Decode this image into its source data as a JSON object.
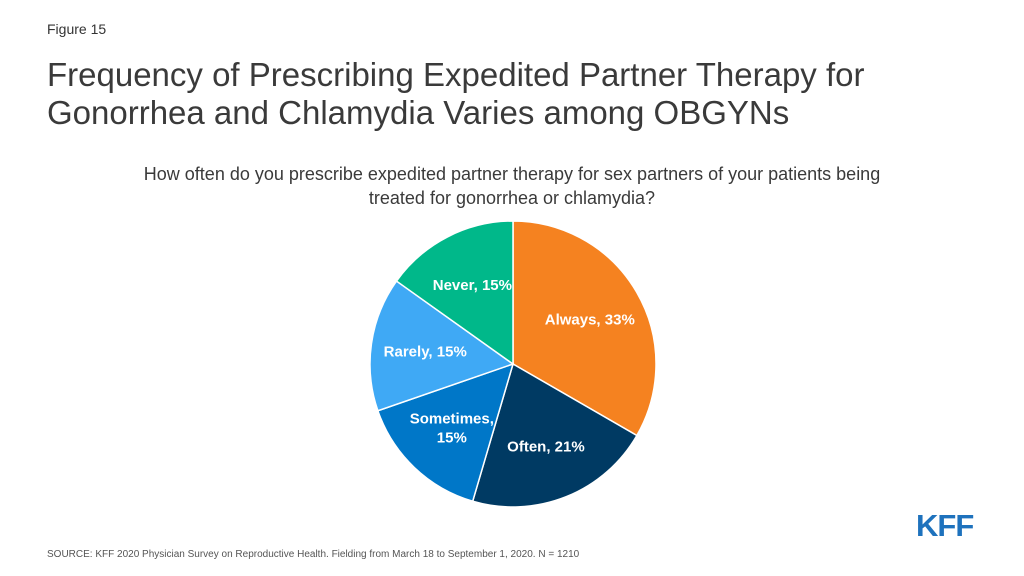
{
  "figure_label": "Figure 15",
  "title": "Frequency of Prescribing Expedited Partner Therapy for Gonorrhea and Chlamydia Varies among OBGYNs",
  "source": "SOURCE: KFF 2020 Physician Survey on Reproductive Health. Fielding from March 18 to September 1, 2020. N = 1210",
  "logo": "KFF",
  "chart_data": {
    "type": "pie",
    "title": "How often do you prescribe expedited partner therapy for sex partners of your patients being treated for gonorrhea or chlamydia?",
    "slices": [
      {
        "label": "Always",
        "value": 33,
        "display": [
          "Always, 33%"
        ],
        "color": "#f58220"
      },
      {
        "label": "Often",
        "value": 21,
        "display": [
          "Often, 21%"
        ],
        "color": "#003a63"
      },
      {
        "label": "Sometimes",
        "value": 15,
        "display": [
          "Sometimes,",
          "15%"
        ],
        "color": "#0077c8"
      },
      {
        "label": "Rarely",
        "value": 15,
        "display": [
          "Rarely, 15%"
        ],
        "color": "#3fa9f5"
      },
      {
        "label": "Never",
        "value": 15,
        "display": [
          "Never, 15%"
        ],
        "color": "#00b88a"
      }
    ]
  }
}
